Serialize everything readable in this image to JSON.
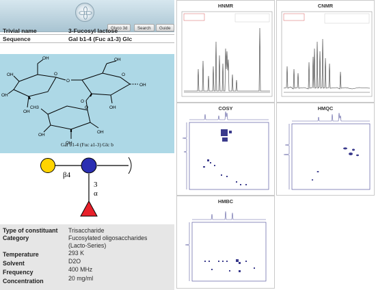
{
  "header": {
    "logo_name": "glycosciences-logo",
    "nav": [
      {
        "label": "Glyco 3d"
      },
      {
        "label": "Search"
      },
      {
        "label": "Guide"
      }
    ]
  },
  "summary": {
    "trivial_name": {
      "label": "Trivial name",
      "value": "3-Fucosyl lactose"
    },
    "sequence": {
      "label": "Sequence",
      "value": "Gal b1-4 (Fuc a1-3) Glc"
    }
  },
  "structure": {
    "caption": "Gal b1-4 (Fuc a1-3) Glc b",
    "hydroxyl_label": "OH",
    "oxygen_label": "O",
    "methyl_label": "CH3",
    "colors": {
      "background": "#add8e6"
    }
  },
  "snfg": {
    "linkage_gal": "β4",
    "linkage_fuc_position": "3",
    "linkage_fuc_anomer": "α",
    "colors": {
      "galactose": "#ffd400",
      "glucose": "#2b2fb2",
      "fucose": "#e8202a"
    }
  },
  "properties": [
    {
      "label": "Type of constituant",
      "value": "Trisaccharide"
    },
    {
      "label": "Category",
      "value": "Fucosylated oligosaccharides"
    },
    {
      "label": "",
      "value": "(Lacto-Series)"
    },
    {
      "label": "Temperature",
      "value": "293 K"
    },
    {
      "label": "Solvent",
      "value": "D2O"
    },
    {
      "label": "Frequency",
      "value": "400 MHz"
    },
    {
      "label": "Concentration",
      "value": "20 mg/ml"
    }
  ],
  "spectra": {
    "hnmr": {
      "title": "HNMR"
    },
    "cnmr": {
      "title": "CNMR"
    },
    "cosy": {
      "title": "COSY"
    },
    "hmqc": {
      "title": "HMQC"
    },
    "hmbc": {
      "title": "HMBC"
    }
  }
}
